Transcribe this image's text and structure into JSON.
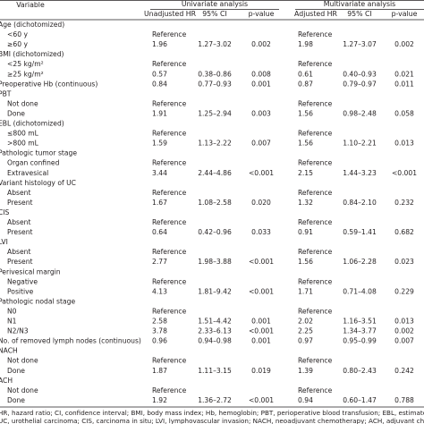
{
  "header": {
    "variable": "Variable",
    "univariate": "Univariate analysis",
    "multivariate": "Multivariate analysis",
    "columns": [
      "Unadjusted HR",
      "95% CI",
      "p-value",
      "Adjusted HR",
      "95% CI",
      "p-value"
    ]
  },
  "table": {
    "sections": [
      {
        "label": "Age (dichotomized)",
        "rows": [
          {
            "label": "<60 y",
            "uni": [
              "Reference"
            ],
            "multi": [
              "Reference"
            ]
          },
          {
            "label": "≥60 y",
            "uni": [
              "1.96",
              "1.27–3.02",
              "0.002"
            ],
            "multi": [
              "1.98",
              "1.27–3.07",
              "0.002"
            ]
          }
        ]
      },
      {
        "label": "BMI (dichotomized)",
        "rows": [
          {
            "label": "<25 kg/m²",
            "uni": [
              "Reference"
            ],
            "multi": [
              "Reference"
            ]
          },
          {
            "label": "≥25 kg/m²",
            "uni": [
              "0.57",
              "0.38–0.86",
              "0.008"
            ],
            "multi": [
              "0.61",
              "0.40–0.93",
              "0.021"
            ]
          }
        ]
      },
      {
        "label": "Preoperative Hb (continuous)",
        "uni": [
          "0.84",
          "0.77–0.93",
          "0.001"
        ],
        "multi": [
          "0.87",
          "0.79–0.97",
          "0.011"
        ]
      },
      {
        "label": "PBT",
        "rows": [
          {
            "label": "Not done",
            "uni": [
              "Reference"
            ],
            "multi": [
              "Reference"
            ]
          },
          {
            "label": "Done",
            "uni": [
              "1.91",
              "1.25–2.94",
              "0.003"
            ],
            "multi": [
              "1.56",
              "0.98–2.48",
              "0.058"
            ]
          }
        ]
      },
      {
        "label": "EBL (dichotomized)",
        "rows": [
          {
            "label": "≤800 mL",
            "uni": [
              "Reference"
            ],
            "multi": [
              "Reference"
            ]
          },
          {
            "label": ">800 mL",
            "uni": [
              "1.59",
              "1.13–2.22",
              "0.007"
            ],
            "multi": [
              "1.56",
              "1.10–2.21",
              "0.013"
            ]
          }
        ]
      },
      {
        "label": "Pathologic tumor stage",
        "rows": [
          {
            "label": "Organ confined",
            "uni": [
              "Reference"
            ],
            "multi": [
              "Reference"
            ]
          },
          {
            "label": "Extravesical",
            "uni": [
              "3.44",
              "2.44–4.86",
              "<0.001"
            ],
            "multi": [
              "2.15",
              "1.44–3.23",
              "<0.001"
            ]
          }
        ]
      },
      {
        "label": "Variant histology of UC",
        "rows": [
          {
            "label": "Absent",
            "uni": [
              "Reference"
            ],
            "multi": [
              "Reference"
            ]
          },
          {
            "label": "Present",
            "uni": [
              "1.67",
              "1.08–2.58",
              "0.020"
            ],
            "multi": [
              "1.32",
              "0.84–2.10",
              "0.232"
            ]
          }
        ]
      },
      {
        "label": "CIS",
        "rows": [
          {
            "label": "Absent",
            "uni": [
              "Reference"
            ],
            "multi": [
              "Reference"
            ]
          },
          {
            "label": "Present",
            "uni": [
              "0.64",
              "0.42–0.96",
              "0.033"
            ],
            "multi": [
              "0.91",
              "0.59–1.41",
              "0.682"
            ]
          }
        ]
      },
      {
        "label": "LVI",
        "rows": [
          {
            "label": "Absent",
            "uni": [
              "Reference"
            ],
            "multi": [
              "Reference"
            ]
          },
          {
            "label": "Present",
            "uni": [
              "2.77",
              "1.98–3.88",
              "<0.001"
            ],
            "multi": [
              "1.56",
              "1.06–2.28",
              "0.023"
            ]
          }
        ]
      },
      {
        "label": "Perivesical margin",
        "rows": [
          {
            "label": "Negative",
            "uni": [
              "Reference"
            ],
            "multi": [
              "Reference"
            ]
          },
          {
            "label": "Positive",
            "uni": [
              "4.13",
              "1.81–9.42",
              "<0.001"
            ],
            "multi": [
              "1.71",
              "0.71–4.08",
              "0.229"
            ]
          }
        ]
      },
      {
        "label": "Pathologic nodal stage",
        "rows": [
          {
            "label": "N0",
            "uni": [
              "Reference"
            ],
            "multi": [
              "Reference"
            ]
          },
          {
            "label": "N1",
            "uni": [
              "2.58",
              "1.51–4.42",
              "0.001"
            ],
            "multi": [
              "2.02",
              "1.16–3.51",
              "0.013"
            ]
          },
          {
            "label": "N2/N3",
            "uni": [
              "3.78",
              "2.33–6.13",
              "<0.001"
            ],
            "multi": [
              "2.25",
              "1.34–3.77",
              "0.002"
            ]
          }
        ]
      },
      {
        "label": "No. of removed lymph nodes (continuous)",
        "uni": [
          "0.96",
          "0.94–0.98",
          "0.001"
        ],
        "multi": [
          "0.97",
          "0.95–0.99",
          "0.007"
        ]
      },
      {
        "label": "NACH",
        "rows": [
          {
            "label": "Not done",
            "uni": [
              "Reference"
            ],
            "multi": [
              "Reference"
            ]
          },
          {
            "label": "Done",
            "uni": [
              "1.87",
              "1.11–3.15",
              "0.019"
            ],
            "multi": [
              "1.39",
              "0.80–2.43",
              "0.242"
            ]
          }
        ]
      },
      {
        "label": "ACH",
        "rows": [
          {
            "label": "Not done",
            "uni": [
              "Reference"
            ],
            "multi": [
              "Reference"
            ]
          },
          {
            "label": "Done",
            "uni": [
              "1.92",
              "1.36–2.72",
              "<0.001"
            ],
            "multi": [
              "0.94",
              "0.60–1.47",
              "0.788"
            ]
          }
        ]
      }
    ]
  },
  "footnote": [
    "HR, hazard ratio; CI, confidence interval; BMI, body mass index; Hb, hemoglobin; PBT, perioperative blood transfusion; EBL, estimated blood loss;",
    "UC, urothelial carcinoma; CIS, carcinoma in situ; LVI, lymphovascular invasion; NACH, neoadjuvant chemotherapy; ACH, adjuvant chemotherapy."
  ]
}
